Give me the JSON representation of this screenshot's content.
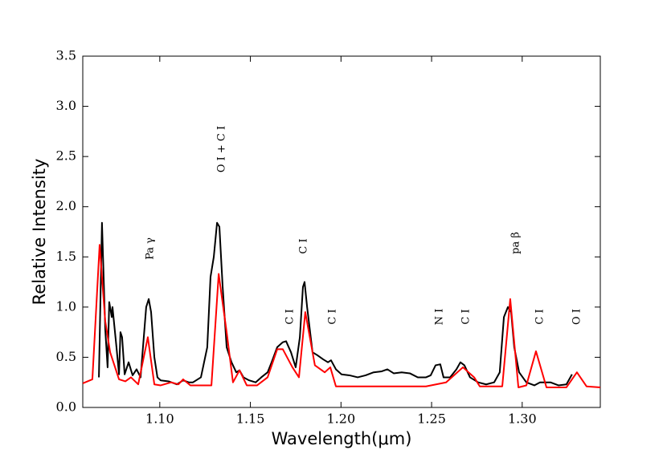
{
  "chart_data": {
    "type": "line",
    "xlabel": "Wavelength(μm)",
    "ylabel": "Relative Intensity",
    "xlim": [
      1.0575,
      1.3431
    ],
    "ylim": [
      0,
      3.5
    ],
    "xticks": [
      {
        "value": 1.1,
        "label": "1.10"
      },
      {
        "value": 1.15,
        "label": "1.15"
      },
      {
        "value": 1.2,
        "label": "1.20"
      },
      {
        "value": 1.25,
        "label": "1.25"
      },
      {
        "value": 1.3,
        "label": "1.30"
      }
    ],
    "yticks": [
      {
        "value": 0,
        "label": "0.0"
      },
      {
        "value": 0.5,
        "label": "0.5"
      },
      {
        "value": 1,
        "label": "1.0"
      },
      {
        "value": 1.5,
        "label": "1.5"
      },
      {
        "value": 2,
        "label": "2.0"
      },
      {
        "value": 2.5,
        "label": "2.5"
      },
      {
        "value": 3,
        "label": "3.0"
      },
      {
        "value": 3.5,
        "label": "3.5"
      }
    ],
    "grid": false,
    "annotations": [
      "Pa γ",
      "O I + C I",
      "C I",
      "C I",
      "C I",
      "N I",
      "C I",
      "pa β",
      "C I",
      "O I"
    ],
    "series": [
      {
        "color": "#000000",
        "x": [
          1.0664,
          1.0681,
          1.0699,
          1.0712,
          1.0721,
          1.0735,
          1.0739,
          1.0761,
          1.0775,
          1.0783,
          1.0792,
          1.0806,
          1.0828,
          1.085,
          1.0872,
          1.0894,
          1.0925,
          1.0939,
          1.0952,
          1.097,
          1.0987,
          1.1005,
          1.1049,
          1.1094,
          1.1129,
          1.116,
          1.1183,
          1.1227,
          1.1262,
          1.128,
          1.1298,
          1.1316,
          1.1329,
          1.1347,
          1.1369,
          1.1396,
          1.1422,
          1.144,
          1.1462,
          1.1493,
          1.1529,
          1.156,
          1.1595,
          1.1617,
          1.1648,
          1.1679,
          1.1697,
          1.1724,
          1.175,
          1.1773,
          1.179,
          1.1799,
          1.1813,
          1.1843,
          1.187,
          1.1901,
          1.1928,
          1.1945,
          1.1972,
          1.2003,
          1.2047,
          1.2092,
          1.2136,
          1.218,
          1.2225,
          1.2256,
          1.2291,
          1.2335,
          1.238,
          1.2424,
          1.2469,
          1.2495,
          1.2522,
          1.2548,
          1.2566,
          1.2602,
          1.2637,
          1.2659,
          1.2681,
          1.2712,
          1.2757,
          1.2801,
          1.2845,
          1.2876,
          1.2899,
          1.2921,
          1.2939,
          1.2956,
          1.2983,
          1.3023,
          1.3067,
          1.3098,
          1.3156,
          1.32,
          1.3244,
          1.3275
        ],
        "values": [
          0.3,
          1.84,
          0.78,
          0.4,
          1.05,
          0.9,
          1.0,
          0.6,
          0.33,
          0.75,
          0.7,
          0.33,
          0.45,
          0.32,
          0.38,
          0.3,
          1.0,
          1.08,
          0.95,
          0.5,
          0.3,
          0.27,
          0.26,
          0.23,
          0.27,
          0.25,
          0.25,
          0.3,
          0.6,
          1.3,
          1.5,
          1.84,
          1.8,
          1.2,
          0.6,
          0.45,
          0.35,
          0.37,
          0.3,
          0.27,
          0.25,
          0.3,
          0.35,
          0.45,
          0.6,
          0.65,
          0.66,
          0.55,
          0.4,
          0.7,
          1.2,
          1.25,
          1.0,
          0.55,
          0.52,
          0.48,
          0.45,
          0.47,
          0.38,
          0.33,
          0.32,
          0.3,
          0.32,
          0.35,
          0.36,
          0.38,
          0.34,
          0.35,
          0.34,
          0.3,
          0.3,
          0.32,
          0.42,
          0.43,
          0.3,
          0.3,
          0.38,
          0.45,
          0.42,
          0.3,
          0.25,
          0.23,
          0.25,
          0.35,
          0.9,
          1.0,
          0.95,
          0.6,
          0.35,
          0.25,
          0.22,
          0.25,
          0.25,
          0.22,
          0.23,
          0.33
        ]
      },
      {
        "color": "#ff0000",
        "x": [
          1.0575,
          1.0628,
          1.0668,
          1.0699,
          1.0726,
          1.0775,
          1.081,
          1.0841,
          1.0881,
          1.0934,
          1.097,
          1.1005,
          1.1063,
          1.1103,
          1.1129,
          1.1169,
          1.1285,
          1.1325,
          1.1369,
          1.1404,
          1.144,
          1.148,
          1.1537,
          1.1595,
          1.1648,
          1.1679,
          1.1732,
          1.1768,
          1.1803,
          1.1856,
          1.191,
          1.1941,
          1.1972,
          1.2469,
          1.258,
          1.2673,
          1.2735,
          1.2766,
          1.289,
          1.2934,
          1.2979,
          1.3023,
          1.3076,
          1.3134,
          1.3244,
          1.3302,
          1.3355,
          1.3431
        ],
        "values": [
          0.24,
          0.28,
          1.62,
          0.86,
          0.55,
          0.28,
          0.26,
          0.3,
          0.23,
          0.7,
          0.23,
          0.22,
          0.25,
          0.23,
          0.28,
          0.22,
          0.22,
          1.33,
          0.75,
          0.25,
          0.37,
          0.22,
          0.22,
          0.3,
          0.58,
          0.58,
          0.4,
          0.3,
          0.95,
          0.42,
          0.35,
          0.4,
          0.21,
          0.21,
          0.25,
          0.4,
          0.3,
          0.21,
          0.21,
          1.08,
          0.2,
          0.22,
          0.56,
          0.2,
          0.2,
          0.35,
          0.21,
          0.2
        ]
      }
    ]
  }
}
